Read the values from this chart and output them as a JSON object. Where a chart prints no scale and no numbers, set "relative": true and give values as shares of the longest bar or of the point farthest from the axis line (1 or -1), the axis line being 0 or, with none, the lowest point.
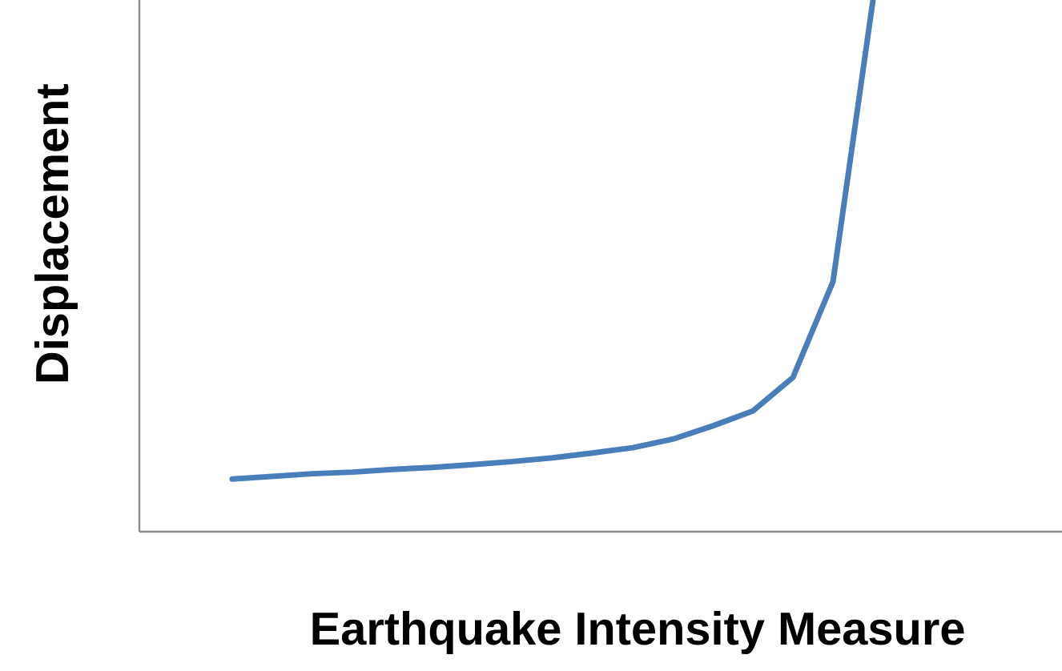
{
  "chart_data": {
    "type": "line",
    "relative": true,
    "xlabel": "Earthquake Intensity Measure",
    "ylabel": "Displacement",
    "categories": [
      null,
      null,
      null,
      null,
      null,
      null,
      null,
      null,
      null,
      null,
      null,
      null,
      null,
      null,
      null,
      null,
      null
    ],
    "series": [
      {
        "color": "#4a7ebb",
        "values": [
          0.099,
          0.104,
          0.109,
          0.112,
          0.117,
          0.121,
          0.126,
          0.132,
          0.139,
          0.148,
          0.158,
          0.174,
          0.199,
          0.227,
          0.29,
          0.47,
          1.0
        ]
      }
    ],
    "marker": "none",
    "line_style": "solid"
  }
}
